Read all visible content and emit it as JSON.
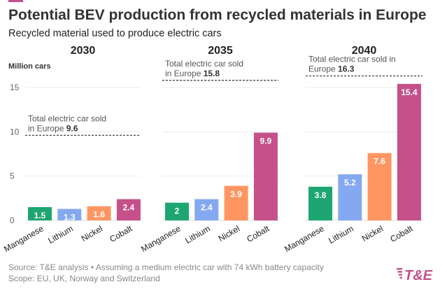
{
  "chart_data": {
    "type": "bar",
    "title": "Potential BEV production from recycled materials in Europe",
    "subtitle": "Recycled material used to produce electric cars",
    "ylabel": "Million cars",
    "ylim": [
      0,
      15
    ],
    "yticks": [
      0,
      5,
      10,
      15
    ],
    "grid": true,
    "categories": [
      "Manganese",
      "Lithium",
      "Nickel",
      "Cobalt"
    ],
    "colors": {
      "Manganese": "#1ea672",
      "Lithium": "#84a9f0",
      "Nickel": "#ff9662",
      "Cobalt": "#c5508a"
    },
    "panels": [
      {
        "year": "2030",
        "values": [
          1.5,
          1.3,
          1.6,
          2.4
        ],
        "reference": {
          "label": "Total electric car sold in Europe",
          "value": 9.6
        }
      },
      {
        "year": "2035",
        "values": [
          2,
          2.4,
          3.9,
          9.9
        ],
        "reference": {
          "label": "Total electric car sold in Europe",
          "value": 15.8
        }
      },
      {
        "year": "2040",
        "values": [
          3.8,
          5.2,
          7.6,
          15.4
        ],
        "reference": {
          "label": "Total electric car sold in Europe",
          "value": 16.3
        }
      }
    ]
  },
  "footer": {
    "source": "Source: T&E analysis • Assuming a medium electric car with 74 kWh battery capacity",
    "scope": "Scope: EU, UK, Norway and Switzerland",
    "logo": "T&E"
  },
  "accent_color": "#c5508a"
}
